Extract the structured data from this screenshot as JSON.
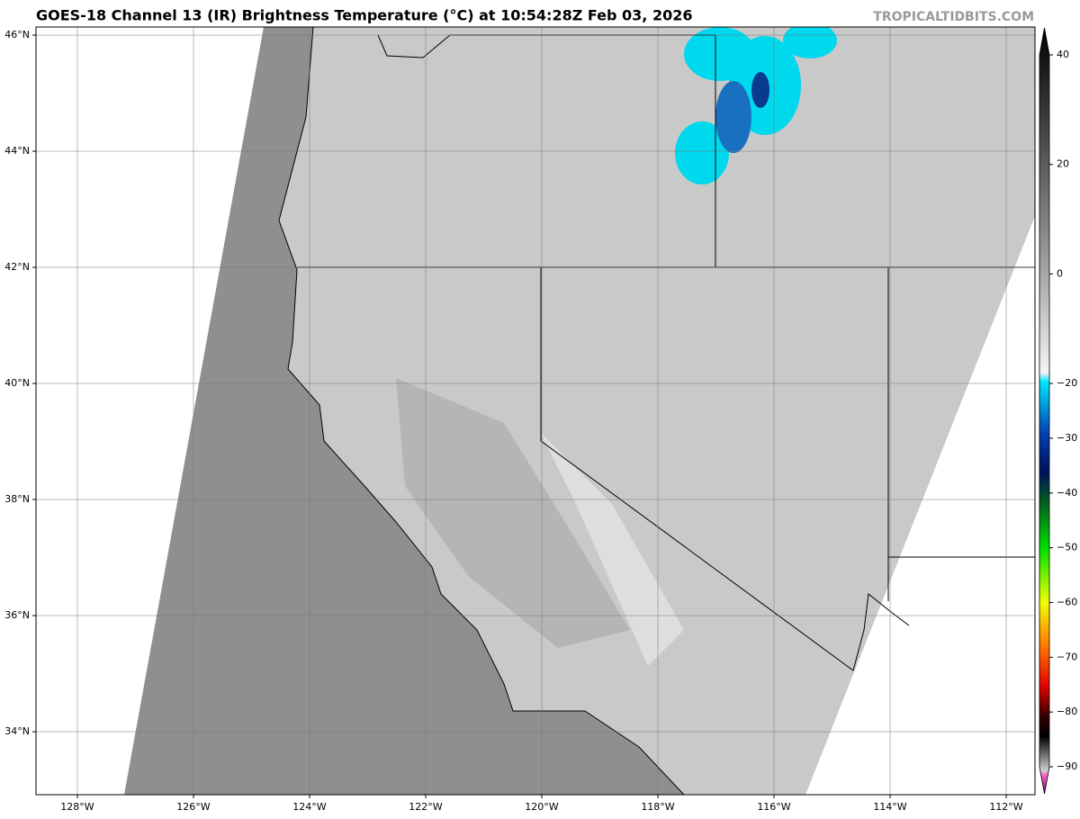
{
  "header": {
    "title": "GOES-18 Channel 13 (IR) Brightness Temperature (°C) at 10:54:28Z Feb 03, 2026",
    "watermark": "TROPICALTIDBITS.COM"
  },
  "map": {
    "xlim": [
      -128.713,
      -111.504
    ],
    "ylim": [
      32.915,
      46.14
    ],
    "grid": true,
    "xticks": [
      {
        "value": -128,
        "label": "128°W"
      },
      {
        "value": -126,
        "label": "126°W"
      },
      {
        "value": -124,
        "label": "124°W"
      },
      {
        "value": -122,
        "label": "122°W"
      },
      {
        "value": -120,
        "label": "120°W"
      },
      {
        "value": -118,
        "label": "118°W"
      },
      {
        "value": -116,
        "label": "116°W"
      },
      {
        "value": -114,
        "label": "114°W"
      },
      {
        "value": -112,
        "label": "112°W"
      }
    ],
    "yticks": [
      {
        "value": 34,
        "label": "34°N"
      },
      {
        "value": 36,
        "label": "36°N"
      },
      {
        "value": 38,
        "label": "38°N"
      },
      {
        "value": 40,
        "label": "40°N"
      },
      {
        "value": 42,
        "label": "42°N"
      },
      {
        "value": 44,
        "label": "44°N"
      },
      {
        "value": 46,
        "label": "46°N"
      }
    ]
  },
  "colorbar": {
    "lim": [
      -90,
      40
    ],
    "ticks": [
      40,
      20,
      0,
      {
        "value": -20,
        "label": "−20"
      },
      {
        "value": -30,
        "label": "−30"
      },
      {
        "value": -40,
        "label": "−40"
      },
      {
        "value": -50,
        "label": "−50"
      },
      {
        "value": -60,
        "label": "−60"
      },
      {
        "value": -70,
        "label": "−70"
      },
      {
        "value": -80,
        "label": "−80"
      },
      {
        "value": -90,
        "label": "−90"
      }
    ]
  }
}
